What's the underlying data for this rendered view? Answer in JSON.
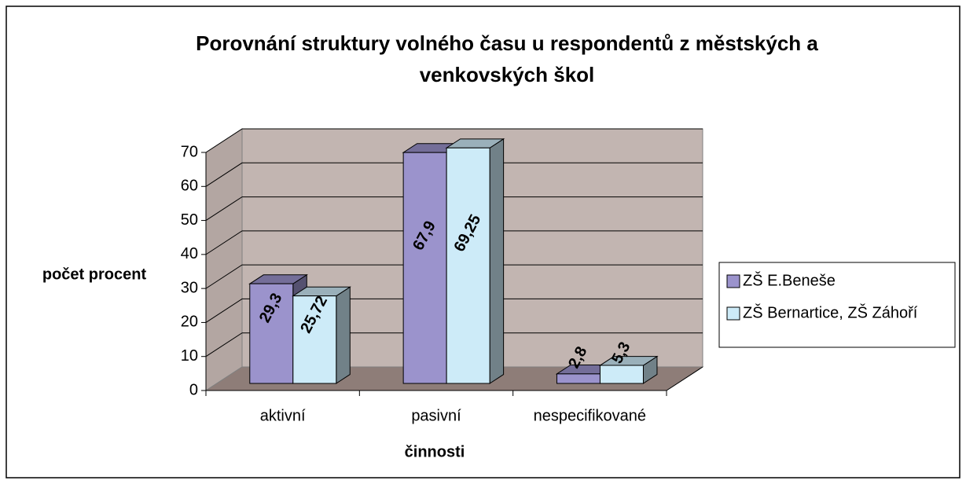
{
  "chart_data": {
    "type": "bar3d",
    "title": "Porovnání struktury volného času u respondentů z městských a venkovských škol",
    "x_label": "činnosti",
    "y_label": "počet procent",
    "categories": [
      "aktivní",
      "pasivní",
      "nespecifikované"
    ],
    "series": [
      {
        "name": "ZŠ E.Beneše",
        "color": "#9b93cc",
        "values": [
          29.3,
          67.9,
          2.8
        ],
        "value_labels": [
          "29,3",
          "67,9",
          "2,8"
        ]
      },
      {
        "name": "ZŠ Bernartice, ZŠ Záhoří",
        "color": "#cdebf8",
        "values": [
          25.72,
          69.25,
          5.3
        ],
        "value_labels": [
          "25,72",
          "69,25",
          "5,3"
        ]
      }
    ],
    "ylim": [
      0,
      70
    ],
    "yticks": [
      0,
      10,
      20,
      30,
      40,
      50,
      60,
      70
    ],
    "grid": true,
    "legend": "right"
  }
}
